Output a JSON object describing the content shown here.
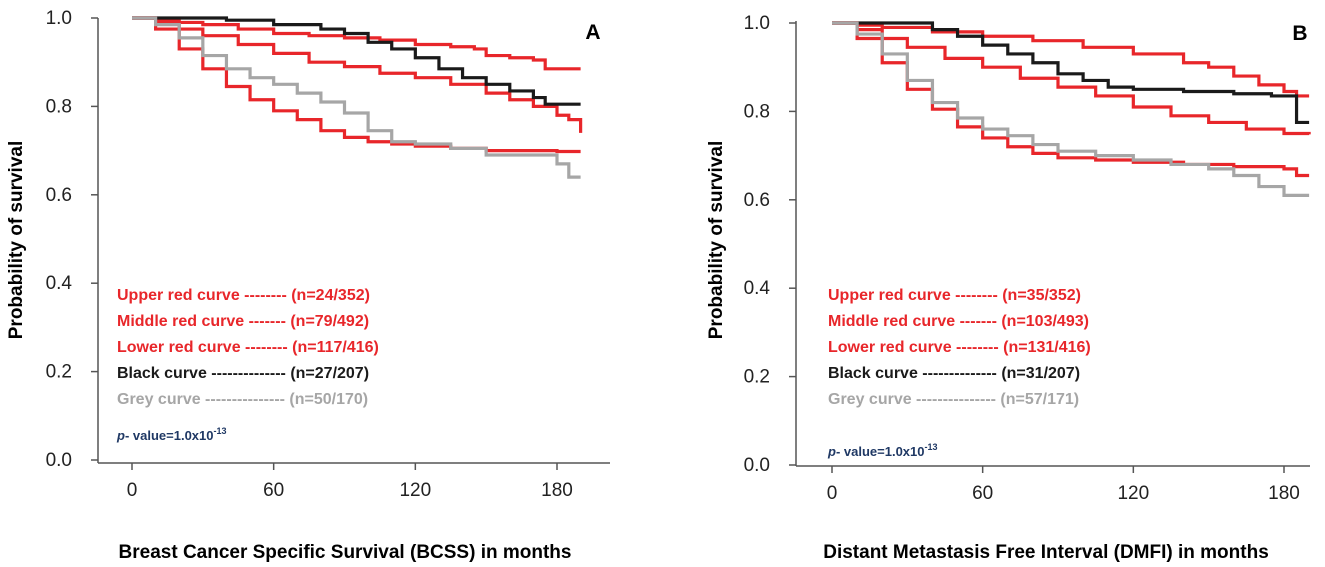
{
  "colors": {
    "red": "#e8262a",
    "black": "#1a1a1a",
    "grey": "#a6a6a6",
    "pvalue": "#1f3864"
  },
  "chart_data": [
    {
      "type": "line",
      "panel_label": "A",
      "xlabel": "Breast Cancer Specific Survival (BCSS) in months",
      "ylabel": "Probability of survival",
      "xlim": [
        0,
        190
      ],
      "ylim": [
        0,
        1.0
      ],
      "xticks": [
        "0",
        "60",
        "120",
        "180"
      ],
      "yticks": [
        "0.0",
        "0.2",
        "0.4",
        "0.6",
        "0.8",
        "1.0"
      ],
      "grid": false,
      "legend_position": "lower-left",
      "p_value": {
        "prefix": "p",
        "text": "- value=1.0x10",
        "exponent": "-13"
      },
      "series": [
        {
          "legend_label": "Upper red curve -------- (n=24/352)",
          "color_key": "red",
          "x": [
            0,
            10,
            20,
            30,
            45,
            60,
            75,
            90,
            105,
            120,
            135,
            145,
            150,
            160,
            170,
            175,
            190
          ],
          "y": [
            1.0,
            0.995,
            0.99,
            0.985,
            0.975,
            0.965,
            0.96,
            0.955,
            0.95,
            0.94,
            0.935,
            0.93,
            0.915,
            0.91,
            0.905,
            0.885,
            0.885
          ]
        },
        {
          "legend_label": "Middle red curve ------- (n=79/492)",
          "color_key": "red",
          "x": [
            0,
            10,
            20,
            30,
            45,
            60,
            75,
            90,
            105,
            120,
            135,
            150,
            160,
            170,
            180,
            185,
            190
          ],
          "y": [
            1.0,
            0.99,
            0.975,
            0.96,
            0.94,
            0.92,
            0.9,
            0.89,
            0.875,
            0.865,
            0.85,
            0.83,
            0.815,
            0.8,
            0.78,
            0.77,
            0.74
          ]
        },
        {
          "legend_label": "Lower red curve -------- (n=117/416)",
          "color_key": "red",
          "x": [
            0,
            10,
            20,
            30,
            40,
            50,
            60,
            70,
            80,
            90,
            100,
            110,
            120,
            135,
            150,
            165,
            180,
            190
          ],
          "y": [
            1.0,
            0.975,
            0.93,
            0.885,
            0.845,
            0.815,
            0.79,
            0.77,
            0.745,
            0.73,
            0.72,
            0.715,
            0.71,
            0.705,
            0.7,
            0.7,
            0.698,
            0.698
          ]
        },
        {
          "legend_label": "Black curve -------------- (n=27/207)",
          "color_key": "black",
          "x": [
            0,
            20,
            40,
            60,
            80,
            90,
            100,
            110,
            120,
            130,
            140,
            150,
            160,
            170,
            175,
            190
          ],
          "y": [
            1.0,
            1.0,
            0.995,
            0.985,
            0.975,
            0.965,
            0.945,
            0.93,
            0.91,
            0.885,
            0.865,
            0.85,
            0.835,
            0.82,
            0.805,
            0.805
          ]
        },
        {
          "legend_label": "Grey curve --------------- (n=50/170)",
          "color_key": "grey",
          "x": [
            0,
            10,
            20,
            30,
            40,
            50,
            60,
            70,
            80,
            90,
            100,
            110,
            120,
            135,
            150,
            165,
            180,
            185,
            190
          ],
          "y": [
            1.0,
            0.985,
            0.955,
            0.915,
            0.885,
            0.865,
            0.85,
            0.83,
            0.81,
            0.785,
            0.745,
            0.72,
            0.715,
            0.705,
            0.69,
            0.69,
            0.67,
            0.64,
            0.64
          ]
        }
      ]
    },
    {
      "type": "line",
      "panel_label": "B",
      "xlabel": "Distant Metastasis Free Interval (DMFI) in months",
      "ylabel": "Probability of survival",
      "xlim": [
        0,
        190
      ],
      "ylim": [
        0,
        1.0
      ],
      "xticks": [
        "0",
        "60",
        "120",
        "180"
      ],
      "yticks": [
        "0.0",
        "0.2",
        "0.4",
        "0.6",
        "0.8",
        "1.0"
      ],
      "grid": false,
      "legend_position": "lower-left",
      "p_value": {
        "prefix": "p",
        "text": "- value=1.0x10",
        "exponent": "-13"
      },
      "series": [
        {
          "legend_label": "Upper red curve -------- (n=35/352)",
          "color_key": "red",
          "x": [
            0,
            10,
            20,
            40,
            60,
            80,
            100,
            120,
            140,
            150,
            160,
            170,
            180,
            185,
            190
          ],
          "y": [
            1.0,
            0.995,
            0.99,
            0.98,
            0.97,
            0.96,
            0.945,
            0.93,
            0.91,
            0.9,
            0.88,
            0.86,
            0.845,
            0.835,
            0.835
          ]
        },
        {
          "legend_label": "Middle red curve ------- (n=103/493)",
          "color_key": "red",
          "x": [
            0,
            10,
            20,
            30,
            45,
            60,
            75,
            90,
            105,
            120,
            135,
            150,
            165,
            180,
            190
          ],
          "y": [
            1.0,
            0.985,
            0.965,
            0.945,
            0.92,
            0.9,
            0.875,
            0.855,
            0.835,
            0.81,
            0.79,
            0.775,
            0.76,
            0.75,
            0.748
          ]
        },
        {
          "legend_label": "Lower red curve -------- (n=131/416)",
          "color_key": "red",
          "x": [
            0,
            10,
            20,
            30,
            40,
            50,
            60,
            70,
            80,
            90,
            105,
            120,
            140,
            160,
            180,
            185,
            190
          ],
          "y": [
            1.0,
            0.965,
            0.91,
            0.85,
            0.805,
            0.765,
            0.74,
            0.72,
            0.705,
            0.695,
            0.69,
            0.685,
            0.68,
            0.675,
            0.67,
            0.655,
            0.655
          ]
        },
        {
          "legend_label": "Black curve -------------- (n=31/207)",
          "color_key": "black",
          "x": [
            0,
            20,
            40,
            50,
            60,
            70,
            80,
            90,
            100,
            110,
            120,
            140,
            160,
            175,
            185,
            190
          ],
          "y": [
            1.0,
            1.0,
            0.985,
            0.97,
            0.95,
            0.93,
            0.91,
            0.885,
            0.87,
            0.855,
            0.85,
            0.845,
            0.84,
            0.835,
            0.775,
            0.775
          ]
        },
        {
          "legend_label": "Grey curve --------------- (n=57/171)",
          "color_key": "grey",
          "x": [
            0,
            10,
            20,
            30,
            40,
            50,
            60,
            70,
            80,
            90,
            105,
            120,
            135,
            150,
            160,
            170,
            180,
            190
          ],
          "y": [
            1.0,
            0.975,
            0.93,
            0.87,
            0.82,
            0.785,
            0.76,
            0.745,
            0.725,
            0.71,
            0.7,
            0.69,
            0.68,
            0.67,
            0.655,
            0.63,
            0.61,
            0.61
          ]
        }
      ]
    }
  ]
}
